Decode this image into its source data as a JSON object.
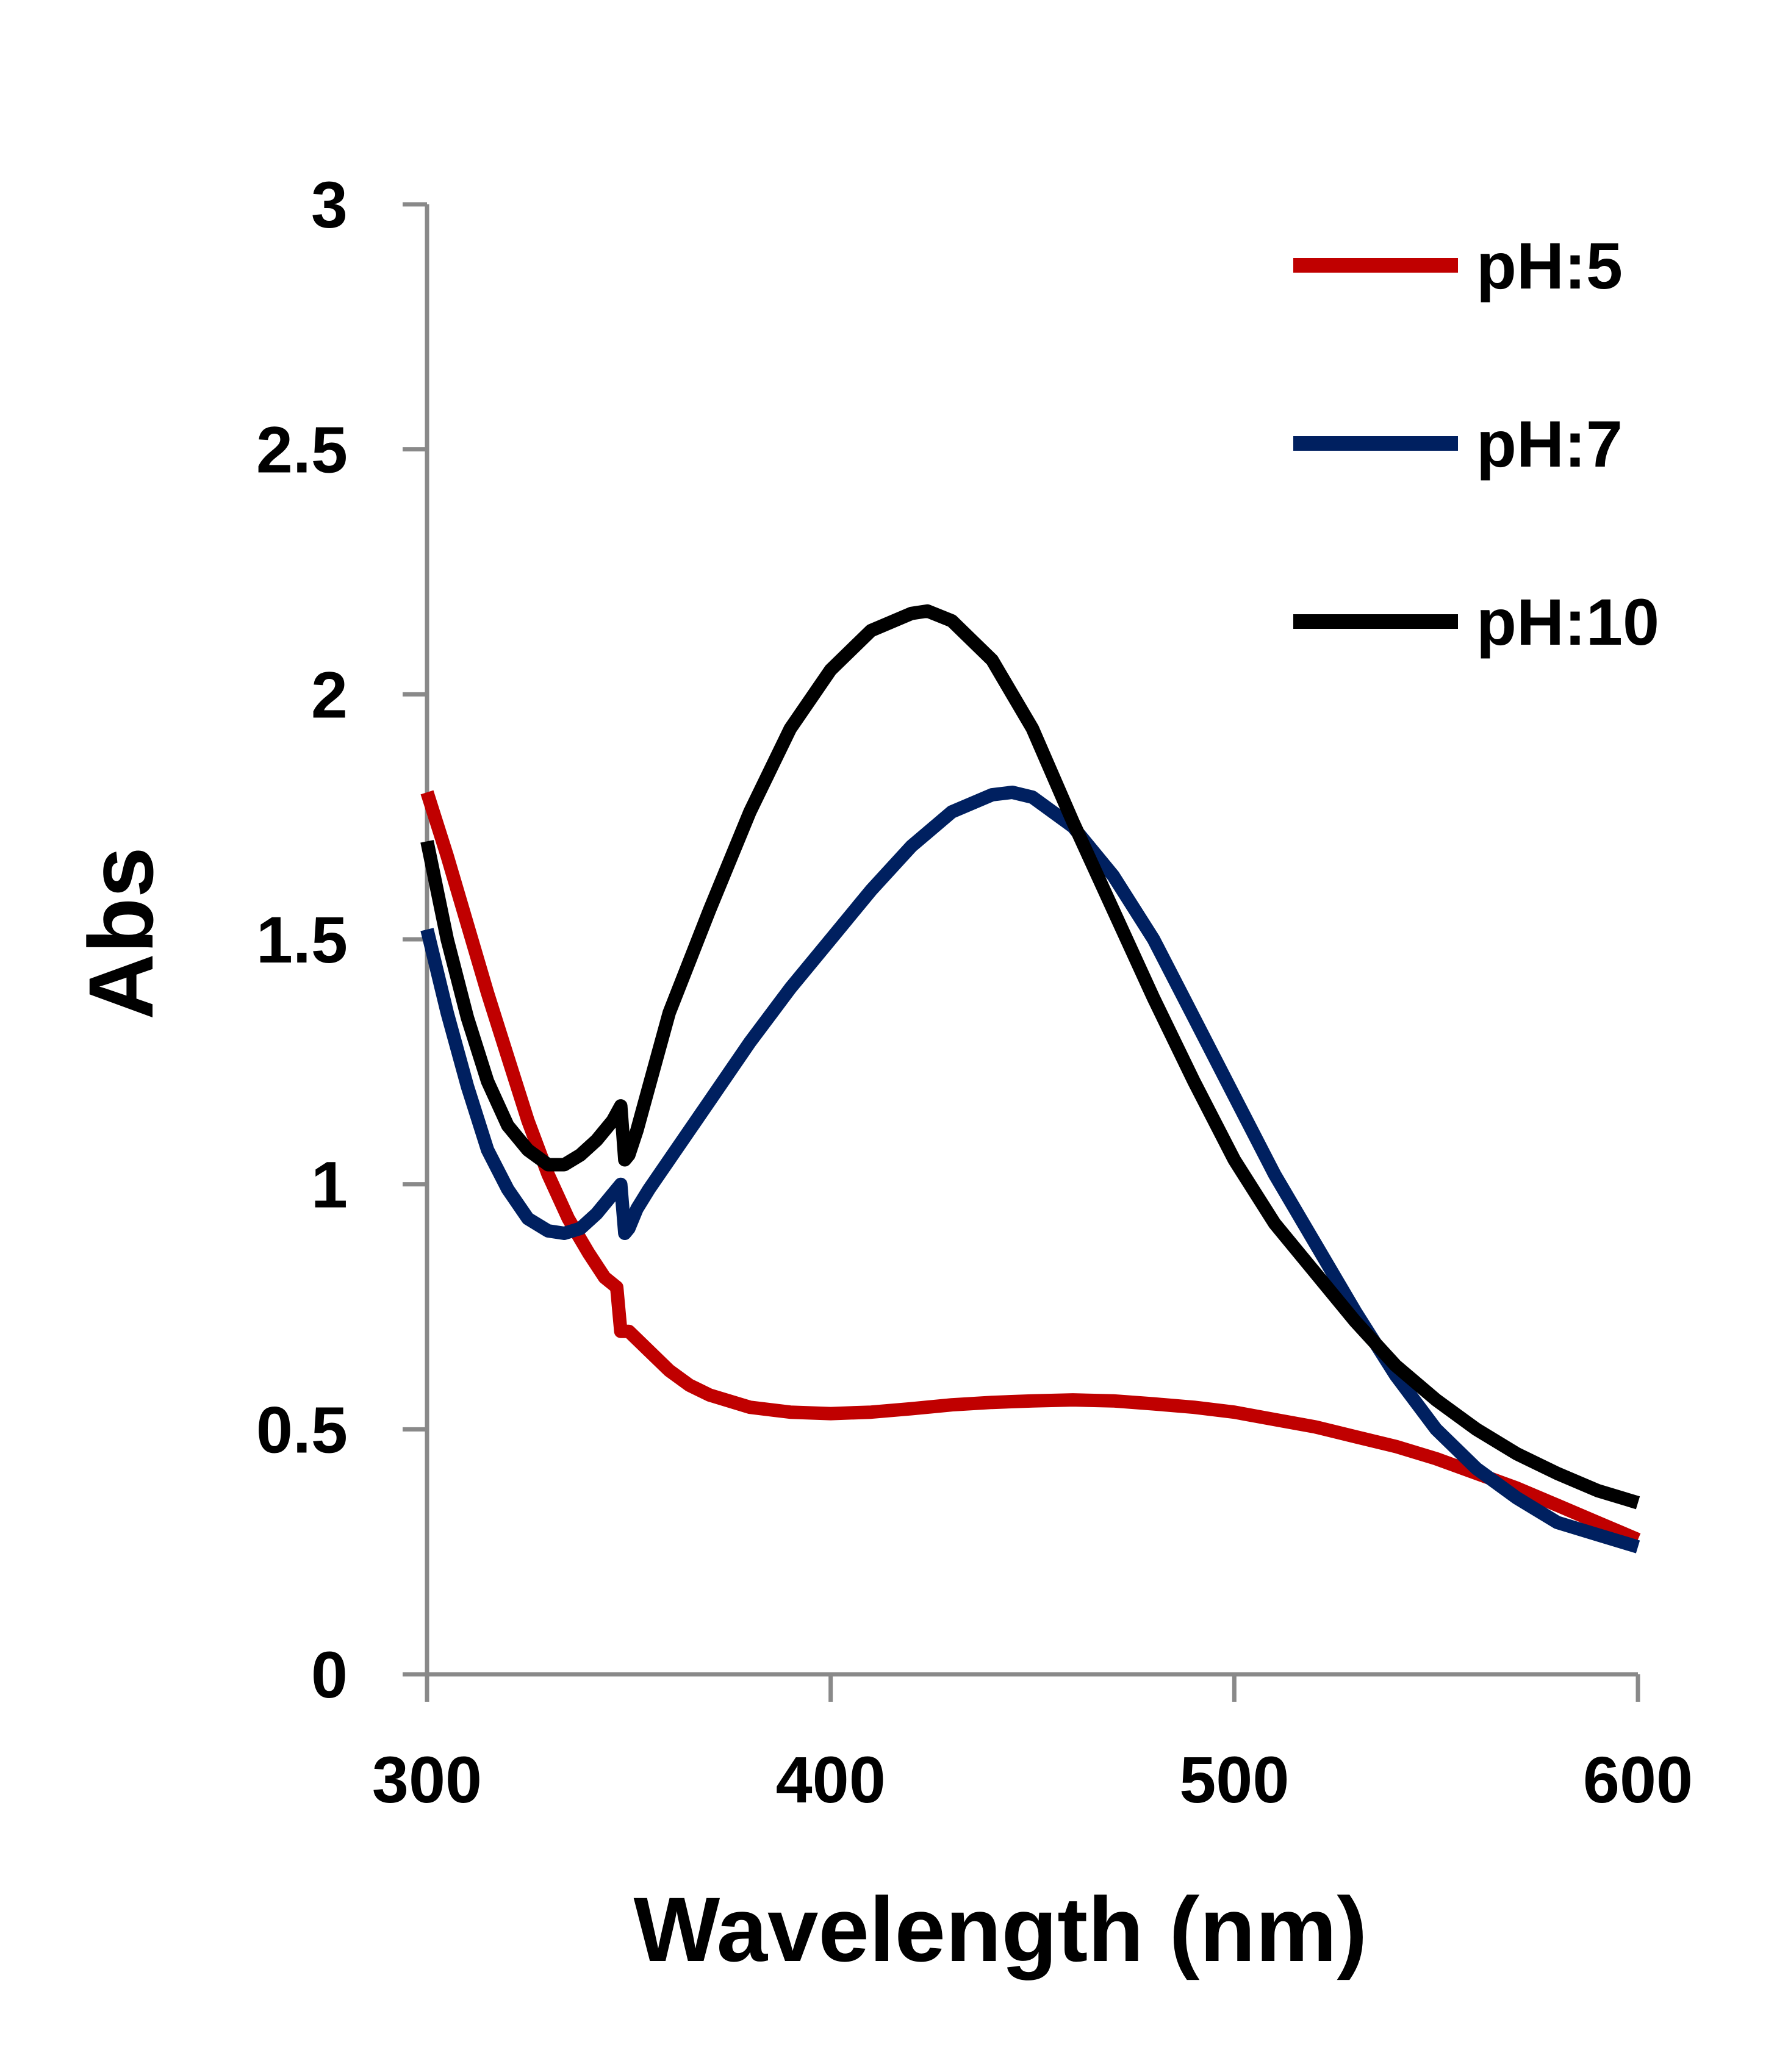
{
  "chart_data": {
    "type": "line",
    "title": "",
    "xlabel": "Wavelength (nm)",
    "ylabel": "Abs",
    "xlim": [
      300,
      600
    ],
    "ylim": [
      0,
      3
    ],
    "x_ticks": [
      300,
      400,
      500,
      600
    ],
    "y_ticks": [
      0,
      0.5,
      1,
      1.5,
      2,
      2.5,
      3
    ],
    "x_tick_labels": [
      "300",
      "400",
      "500",
      "600"
    ],
    "y_tick_labels": [
      "0",
      "0.5",
      "1",
      "1.5",
      "2",
      "2.5",
      "3"
    ],
    "grid": false,
    "legend_position": "top-right",
    "series": [
      {
        "name": "pH:5",
        "color": "#c00000",
        "points": [
          [
            300,
            1.8
          ],
          [
            305,
            1.67
          ],
          [
            310,
            1.53
          ],
          [
            315,
            1.39
          ],
          [
            320,
            1.26
          ],
          [
            325,
            1.13
          ],
          [
            330,
            1.02
          ],
          [
            335,
            0.93
          ],
          [
            340,
            0.86
          ],
          [
            344,
            0.81
          ],
          [
            347,
            0.79
          ],
          [
            348,
            0.7
          ],
          [
            350,
            0.7
          ],
          [
            355,
            0.66
          ],
          [
            360,
            0.62
          ],
          [
            365,
            0.59
          ],
          [
            370,
            0.57
          ],
          [
            380,
            0.545
          ],
          [
            390,
            0.535
          ],
          [
            400,
            0.532
          ],
          [
            410,
            0.535
          ],
          [
            420,
            0.542
          ],
          [
            430,
            0.55
          ],
          [
            440,
            0.555
          ],
          [
            450,
            0.558
          ],
          [
            460,
            0.56
          ],
          [
            470,
            0.558
          ],
          [
            480,
            0.552
          ],
          [
            490,
            0.545
          ],
          [
            500,
            0.535
          ],
          [
            510,
            0.52
          ],
          [
            520,
            0.505
          ],
          [
            530,
            0.485
          ],
          [
            540,
            0.465
          ],
          [
            550,
            0.44
          ],
          [
            560,
            0.41
          ],
          [
            570,
            0.38
          ],
          [
            580,
            0.345
          ],
          [
            590,
            0.31
          ],
          [
            600,
            0.275
          ]
        ]
      },
      {
        "name": "pH:7",
        "color": "#002060",
        "points": [
          [
            300,
            1.52
          ],
          [
            305,
            1.35
          ],
          [
            310,
            1.2
          ],
          [
            315,
            1.07
          ],
          [
            320,
            0.99
          ],
          [
            325,
            0.93
          ],
          [
            330,
            0.905
          ],
          [
            334,
            0.9
          ],
          [
            338,
            0.91
          ],
          [
            342,
            0.94
          ],
          [
            346,
            0.98
          ],
          [
            348,
            1.0
          ],
          [
            349,
            0.9
          ],
          [
            350,
            0.91
          ],
          [
            352,
            0.95
          ],
          [
            355,
            0.99
          ],
          [
            360,
            1.05
          ],
          [
            370,
            1.17
          ],
          [
            380,
            1.29
          ],
          [
            390,
            1.4
          ],
          [
            400,
            1.5
          ],
          [
            410,
            1.6
          ],
          [
            420,
            1.69
          ],
          [
            430,
            1.76
          ],
          [
            440,
            1.795
          ],
          [
            445,
            1.8
          ],
          [
            450,
            1.79
          ],
          [
            460,
            1.73
          ],
          [
            470,
            1.63
          ],
          [
            480,
            1.5
          ],
          [
            490,
            1.34
          ],
          [
            500,
            1.18
          ],
          [
            510,
            1.02
          ],
          [
            520,
            0.88
          ],
          [
            530,
            0.74
          ],
          [
            540,
            0.61
          ],
          [
            550,
            0.5
          ],
          [
            560,
            0.42
          ],
          [
            570,
            0.36
          ],
          [
            580,
            0.31
          ],
          [
            590,
            0.285
          ],
          [
            600,
            0.26
          ]
        ]
      },
      {
        "name": "pH:10",
        "color": "#000000",
        "points": [
          [
            300,
            1.7
          ],
          [
            305,
            1.5
          ],
          [
            310,
            1.34
          ],
          [
            315,
            1.21
          ],
          [
            320,
            1.12
          ],
          [
            325,
            1.07
          ],
          [
            330,
            1.04
          ],
          [
            334,
            1.04
          ],
          [
            338,
            1.06
          ],
          [
            342,
            1.09
          ],
          [
            346,
            1.13
          ],
          [
            348,
            1.16
          ],
          [
            349,
            1.05
          ],
          [
            350,
            1.06
          ],
          [
            352,
            1.11
          ],
          [
            355,
            1.2
          ],
          [
            360,
            1.35
          ],
          [
            370,
            1.56
          ],
          [
            380,
            1.76
          ],
          [
            390,
            1.93
          ],
          [
            400,
            2.05
          ],
          [
            410,
            2.13
          ],
          [
            420,
            2.165
          ],
          [
            424,
            2.17
          ],
          [
            430,
            2.15
          ],
          [
            440,
            2.07
          ],
          [
            450,
            1.93
          ],
          [
            460,
            1.74
          ],
          [
            470,
            1.56
          ],
          [
            480,
            1.38
          ],
          [
            490,
            1.21
          ],
          [
            500,
            1.05
          ],
          [
            510,
            0.92
          ],
          [
            520,
            0.82
          ],
          [
            530,
            0.72
          ],
          [
            540,
            0.63
          ],
          [
            550,
            0.56
          ],
          [
            560,
            0.5
          ],
          [
            570,
            0.45
          ],
          [
            580,
            0.41
          ],
          [
            590,
            0.375
          ],
          [
            600,
            0.35
          ]
        ]
      }
    ]
  }
}
